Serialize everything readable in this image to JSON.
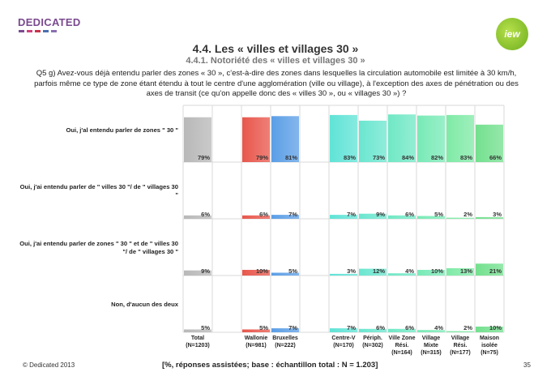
{
  "brand": {
    "name": "DEDICATED",
    "colors": {
      "purple": "#7a4a8f",
      "pink": "#d0407a",
      "red": "#c8354a",
      "blue": "#4a6fb0",
      "green": "#6fae1e"
    },
    "badge_text": "iew"
  },
  "header": {
    "title": "4.4. Les « villes et villages 30 »",
    "subtitle": "4.4.1. Notoriété des « villes et villages 30 »"
  },
  "question": "Q5 g) Avez-vous déjà entendu parler des zones « 30 », c'est-à-dire des zones dans lesquelles la circulation automobile est limitée à 30 km/h, parfois même ce type de zone étant étendu à tout le centre d'une agglomération (ville ou village), à l'exception des axes de pénétration ou des axes de transit (ce qu'on appelle donc des « villes 30 », ou « villages 30 ») ?",
  "chart_data": {
    "type": "bar",
    "title": "Notoriété des « villes et villages 30 »",
    "ylim": [
      0,
      100
    ],
    "rows": [
      "Oui, j'al entendu parler de zones \" 30 \"",
      "Oui, j'ai entendu parler de \" villes 30 \"/ de \" villages 30 \"",
      "Oui, j'ai entendu parler de zones \" 30 \" et de \" villes 30 \"/ de \" villages 30 \"",
      "Non, d'aucun des deux"
    ],
    "columns": [
      {
        "name": "Total",
        "base": "(N=1203)",
        "color": "#b8b8b8",
        "values": [
          79,
          6,
          9,
          5
        ]
      },
      {
        "name": "",
        "base": "",
        "color": "",
        "values": []
      },
      {
        "name": "Wallonie",
        "base": "(N=981)",
        "color": "#e8564b",
        "values": [
          79,
          6,
          10,
          5
        ]
      },
      {
        "name": "Bruxelles",
        "base": "(N=222)",
        "color": "#5b9ee6",
        "values": [
          81,
          7,
          5,
          7
        ]
      },
      {
        "name": "",
        "base": "",
        "color": "",
        "values": []
      },
      {
        "name": "Centre-V",
        "base": "(N=170)",
        "color": "#5fe3d6",
        "values": [
          83,
          7,
          3,
          7
        ]
      },
      {
        "name": "Périph.",
        "base": "(N=302)",
        "color": "#6ae6cf",
        "values": [
          73,
          9,
          12,
          6
        ]
      },
      {
        "name": "Ville Zone",
        "base": "Rési.",
        "base2": "(N=164)",
        "color": "#70e8c5",
        "values": [
          84,
          6,
          4,
          6
        ]
      },
      {
        "name": "Village",
        "base": "Mixte",
        "base2": "(N=315)",
        "color": "#78eab6",
        "values": [
          82,
          5,
          10,
          4
        ]
      },
      {
        "name": "Village",
        "base": "Rési.",
        "base2": "(N=177)",
        "color": "#7feaa6",
        "values": [
          83,
          2,
          13,
          2
        ]
      },
      {
        "name": "Maison",
        "base": "isolée",
        "base2": "(N=75)",
        "color": "#73e08e",
        "values": [
          66,
          3,
          21,
          10
        ]
      }
    ]
  },
  "footer": {
    "copyright": "© Dedicated 2013",
    "note": "[%, réponses assistées; base : échantillon total : N = 1.203]",
    "page": "35"
  }
}
